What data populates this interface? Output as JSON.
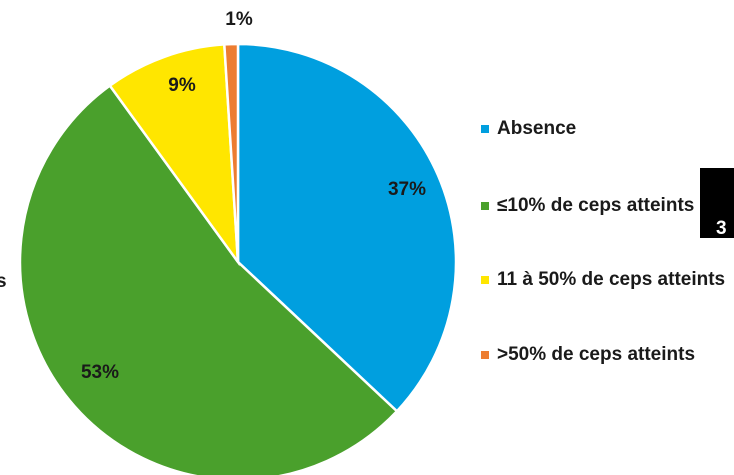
{
  "chart_data": {
    "type": "pie",
    "categories": [
      "Absence",
      "≤10% de ceps atteints",
      "11 à 50% de ceps atteints",
      ">50% de ceps atteints"
    ],
    "values": [
      37,
      53,
      9,
      1
    ],
    "value_labels": [
      "37%",
      "53%",
      "9%",
      "1%"
    ],
    "colors": [
      "#009fdf",
      "#4aa02c",
      "#ffe600",
      "#ed7d31"
    ],
    "legend": "right",
    "fragments": {
      "left": "s",
      "right": "3"
    }
  }
}
